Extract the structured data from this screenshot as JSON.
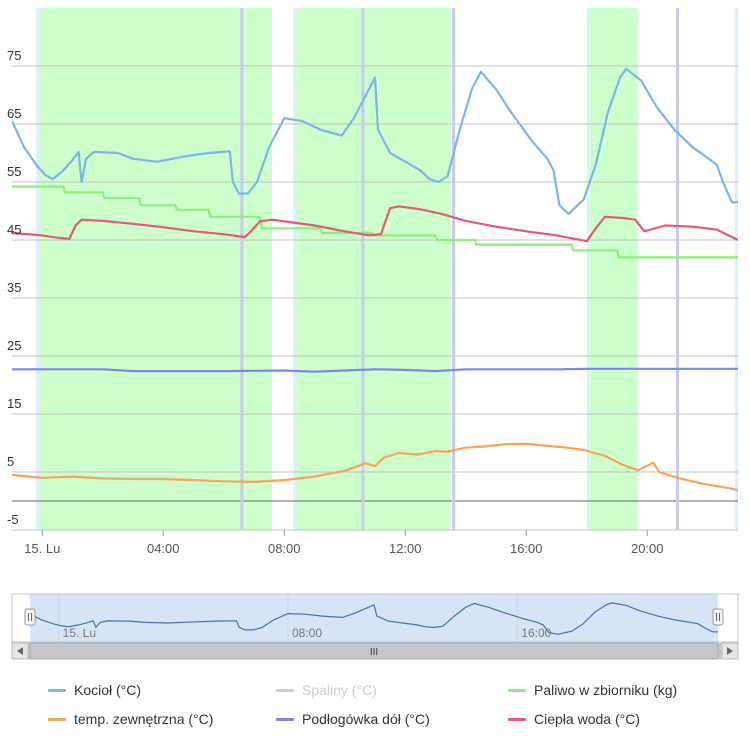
{
  "chart_data": {
    "type": "line",
    "ylim": [
      -5,
      85
    ],
    "y_ticks": [
      -5,
      5,
      15,
      25,
      35,
      45,
      55,
      65,
      75
    ],
    "x_range_hours": [
      -1,
      23
    ],
    "x_ticks": [
      {
        "hour": 0,
        "label": "15. Lu"
      },
      {
        "hour": 4,
        "label": "04:00"
      },
      {
        "hour": 8,
        "label": "08:00"
      },
      {
        "hour": 12,
        "label": "12:00"
      },
      {
        "hour": 16,
        "label": "16:00"
      },
      {
        "hour": 20,
        "label": "20:00"
      }
    ],
    "grid": true,
    "legend_position": "bottom",
    "plot_bands_hours": [
      [
        -0.1,
        7.6
      ],
      [
        8.4,
        13.5
      ],
      [
        18.1,
        19.7
      ],
      [
        23.0,
        24.9
      ],
      [
        28.9,
        30.4
      ],
      [
        32.9,
        34.0
      ]
    ],
    "vertical_markers_hours": [
      6.6,
      10.6,
      13.6,
      21.0,
      27.0,
      33.8
    ],
    "series": [
      {
        "name": "Kocioł (°C)",
        "color": "#7cb5ec",
        "visible": true,
        "points": [
          [
            -1,
            65.5
          ],
          [
            -0.6,
            61
          ],
          [
            -0.2,
            58
          ],
          [
            0.1,
            56.2
          ],
          [
            0.35,
            55.5
          ],
          [
            0.7,
            57
          ],
          [
            1.0,
            58.8
          ],
          [
            1.2,
            60.2
          ],
          [
            1.3,
            55
          ],
          [
            1.45,
            59
          ],
          [
            1.7,
            60.2
          ],
          [
            2.5,
            60
          ],
          [
            3.0,
            59
          ],
          [
            3.8,
            58.5
          ],
          [
            4.8,
            59.5
          ],
          [
            5.5,
            60.0
          ],
          [
            6.2,
            60.3
          ],
          [
            6.3,
            55
          ],
          [
            6.5,
            53
          ],
          [
            6.8,
            53
          ],
          [
            7.1,
            55
          ],
          [
            7.5,
            61
          ],
          [
            8.0,
            66
          ],
          [
            8.6,
            65.5
          ],
          [
            9.2,
            64
          ],
          [
            9.9,
            63
          ],
          [
            10.3,
            66
          ],
          [
            10.7,
            70
          ],
          [
            11.0,
            73
          ],
          [
            11.1,
            64
          ],
          [
            11.5,
            60
          ],
          [
            12.0,
            58.5
          ],
          [
            12.5,
            57
          ],
          [
            12.8,
            55.5
          ],
          [
            13.1,
            55
          ],
          [
            13.4,
            56
          ],
          [
            13.8,
            64
          ],
          [
            14.2,
            71
          ],
          [
            14.5,
            74
          ],
          [
            15.0,
            71
          ],
          [
            15.5,
            67
          ],
          [
            16.2,
            62
          ],
          [
            16.7,
            59
          ],
          [
            16.9,
            57
          ],
          [
            17.1,
            51
          ],
          [
            17.4,
            49.5
          ],
          [
            17.9,
            52
          ],
          [
            18.3,
            58
          ],
          [
            18.7,
            67
          ],
          [
            19.1,
            73
          ],
          [
            19.3,
            74.5
          ],
          [
            19.8,
            72.5
          ],
          [
            20.3,
            68
          ],
          [
            20.9,
            64
          ],
          [
            21.5,
            61
          ],
          [
            22.3,
            58
          ],
          [
            22.5,
            55
          ],
          [
            22.8,
            51.5
          ],
          [
            23.0,
            51.5
          ],
          [
            23.4,
            55
          ],
          [
            23.8,
            65
          ],
          [
            24.2,
            71
          ],
          [
            24.5,
            73.5
          ],
          [
            25.0,
            71
          ],
          [
            25.5,
            68.5
          ],
          [
            25.9,
            66
          ],
          [
            26.3,
            60
          ],
          [
            26.7,
            55
          ],
          [
            26.9,
            53.5
          ],
          [
            27.1,
            53
          ]
        ]
      },
      {
        "name": "Spaliny (°C)",
        "color": "#c0c0c0",
        "visible": false,
        "points": []
      },
      {
        "name": "Paliwo w zbiorniku (kg)",
        "color": "#90ed7d",
        "visible": true,
        "points": [
          [
            -1,
            54.2
          ],
          [
            0.7,
            54.2
          ],
          [
            0.75,
            53.2
          ],
          [
            2.0,
            53.2
          ],
          [
            2.05,
            52.2
          ],
          [
            3.2,
            52.2
          ],
          [
            3.25,
            51.0
          ],
          [
            4.4,
            51.0
          ],
          [
            4.45,
            50.2
          ],
          [
            5.5,
            50.2
          ],
          [
            5.55,
            49.0
          ],
          [
            7.2,
            49.0
          ],
          [
            7.25,
            47.0
          ],
          [
            9.2,
            47.0
          ],
          [
            9.25,
            46.2
          ],
          [
            10.9,
            46.2
          ],
          [
            10.95,
            45.8
          ],
          [
            13.0,
            45.8
          ],
          [
            13.05,
            45.0
          ],
          [
            14.3,
            45.0
          ],
          [
            14.35,
            44.2
          ],
          [
            17.5,
            44.2
          ],
          [
            17.55,
            43.2
          ],
          [
            19.0,
            43.2
          ],
          [
            19.05,
            42.0
          ],
          [
            23.2,
            42.0
          ],
          [
            23.25,
            41.2
          ],
          [
            27.1,
            41.2
          ]
        ]
      },
      {
        "name": "temp. zewnętrzna (°C)",
        "color": "#f7a35c",
        "visible": true,
        "points": [
          [
            -1,
            4.5
          ],
          [
            0,
            4.0
          ],
          [
            1,
            4.2
          ],
          [
            2,
            3.9
          ],
          [
            3,
            3.8
          ],
          [
            4,
            3.8
          ],
          [
            5,
            3.6
          ],
          [
            6,
            3.4
          ],
          [
            7,
            3.3
          ],
          [
            8,
            3.6
          ],
          [
            9,
            4.2
          ],
          [
            10,
            5.2
          ],
          [
            10.7,
            6.5
          ],
          [
            11.0,
            6.0
          ],
          [
            11.3,
            7.5
          ],
          [
            11.8,
            8.3
          ],
          [
            12.4,
            8.0
          ],
          [
            13.0,
            8.6
          ],
          [
            13.4,
            8.5
          ],
          [
            14.0,
            9.2
          ],
          [
            14.6,
            9.4
          ],
          [
            15.3,
            9.8
          ],
          [
            16.0,
            9.9
          ],
          [
            16.5,
            9.6
          ],
          [
            17.2,
            9.3
          ],
          [
            17.9,
            8.8
          ],
          [
            18.6,
            7.8
          ],
          [
            19.2,
            6.2
          ],
          [
            19.7,
            5.3
          ],
          [
            20.2,
            6.6
          ],
          [
            20.4,
            5.0
          ],
          [
            21.0,
            4.0
          ],
          [
            21.8,
            3.0
          ],
          [
            22.6,
            2.3
          ],
          [
            23.4,
            1.5
          ],
          [
            24.2,
            0.5
          ],
          [
            25.0,
            -0.5
          ],
          [
            25.8,
            -1.3
          ],
          [
            26.4,
            -1.7
          ],
          [
            27.1,
            -1.5
          ]
        ]
      },
      {
        "name": "Podłogówka dół (°C)",
        "color": "#8085e9",
        "visible": true,
        "points": [
          [
            -1,
            22.7
          ],
          [
            2,
            22.7
          ],
          [
            3,
            22.4
          ],
          [
            6,
            22.4
          ],
          [
            8,
            22.5
          ],
          [
            9,
            22.3
          ],
          [
            10,
            22.5
          ],
          [
            11,
            22.7
          ],
          [
            12,
            22.6
          ],
          [
            13,
            22.4
          ],
          [
            14,
            22.7
          ],
          [
            17,
            22.7
          ],
          [
            18,
            22.8
          ],
          [
            21,
            22.8
          ],
          [
            24,
            22.8
          ],
          [
            25,
            22.8
          ],
          [
            26,
            22.6
          ],
          [
            27.1,
            22.6
          ]
        ]
      },
      {
        "name": "Ciepła woda (°C)",
        "color": "#e15b76",
        "visible": true,
        "points": [
          [
            -1,
            46.2
          ],
          [
            0,
            45.8
          ],
          [
            0.5,
            45.4
          ],
          [
            0.9,
            45.2
          ],
          [
            1.1,
            47.5
          ],
          [
            1.3,
            48.5
          ],
          [
            2.0,
            48.3
          ],
          [
            3.0,
            47.8
          ],
          [
            4.0,
            47.2
          ],
          [
            5.0,
            46.5
          ],
          [
            6.0,
            46.0
          ],
          [
            6.7,
            45.5
          ],
          [
            6.9,
            46.5
          ],
          [
            7.2,
            48.2
          ],
          [
            7.6,
            48.5
          ],
          [
            8.0,
            48.2
          ],
          [
            9.0,
            47.5
          ],
          [
            10.0,
            46.5
          ],
          [
            10.8,
            45.8
          ],
          [
            11.2,
            46.0
          ],
          [
            11.5,
            50.5
          ],
          [
            11.8,
            50.8
          ],
          [
            12.5,
            50.3
          ],
          [
            13.2,
            49.5
          ],
          [
            14.0,
            48.3
          ],
          [
            15.0,
            47.3
          ],
          [
            16.0,
            46.5
          ],
          [
            17.0,
            45.8
          ],
          [
            17.6,
            45.2
          ],
          [
            18.0,
            44.8
          ],
          [
            18.3,
            47.0
          ],
          [
            18.6,
            49.0
          ],
          [
            19.2,
            48.8
          ],
          [
            19.6,
            48.5
          ],
          [
            19.9,
            46.5
          ],
          [
            20.6,
            47.5
          ],
          [
            21.5,
            47.3
          ],
          [
            22.3,
            46.8
          ],
          [
            22.8,
            45.5
          ],
          [
            23.1,
            44.8
          ],
          [
            23.4,
            46.5
          ],
          [
            23.8,
            48.5
          ],
          [
            24.5,
            48.5
          ],
          [
            25.0,
            48.0
          ],
          [
            26.0,
            47.3
          ],
          [
            26.5,
            46.8
          ],
          [
            27.1,
            46.5
          ]
        ]
      }
    ]
  },
  "navigator": {
    "x_labels": [
      {
        "hour": 0,
        "label": "15. Lu"
      },
      {
        "hour": 8,
        "label": "08:00"
      },
      {
        "hour": 16,
        "label": "16:00"
      }
    ],
    "scrollbar_grip": "III"
  },
  "colors": {
    "band": "#ccffcc",
    "band_edge": "#ddeeff",
    "marker": "#c8c8f0",
    "grid": "#c0c0c0",
    "zero_line": "#666666",
    "navigator_fill": "#d6e4f5",
    "navigator_line": "#4572a7",
    "scrollbar_track": "#c8c8c8",
    "scrollbar_bar": "#e6e6e6"
  }
}
